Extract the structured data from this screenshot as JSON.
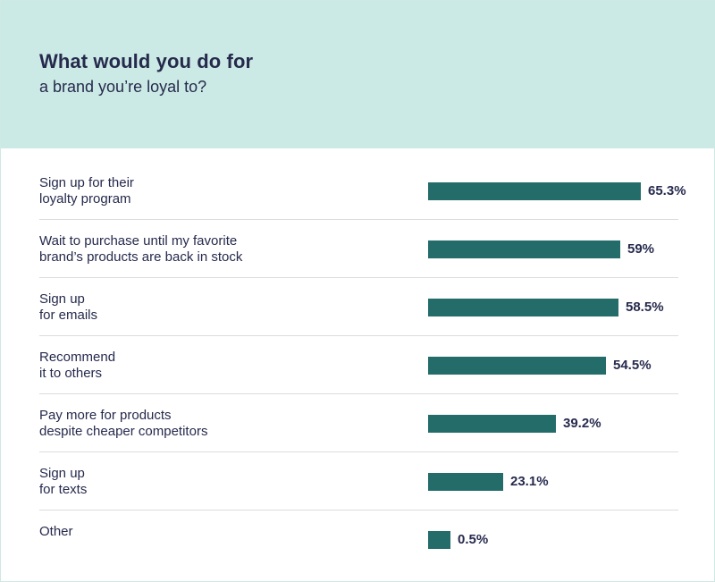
{
  "header": {
    "title": "What would you do for",
    "subtitle": "a brand you’re loyal to?"
  },
  "colors": {
    "header_bg": "#cceae5",
    "bar": "#236c6a",
    "text": "#262a4d"
  },
  "chart_data": {
    "type": "bar",
    "orientation": "horizontal",
    "categories": [
      [
        "Sign up for their",
        "loyalty program"
      ],
      [
        "Wait to purchase until my favorite",
        "brand’s products are back in stock"
      ],
      [
        "Sign up",
        "for emails"
      ],
      [
        "Recommend",
        "it to others"
      ],
      [
        "Pay more for products",
        "despite cheaper competitors"
      ],
      [
        "Sign up",
        "for texts"
      ],
      [
        "Other"
      ]
    ],
    "values": [
      65.3,
      59,
      58.5,
      54.5,
      39.2,
      23.1,
      0.5
    ],
    "value_labels": [
      "65.3%",
      "59%",
      "58.5%",
      "54.5%",
      "39.2%",
      "23.1%",
      "0.5%"
    ],
    "title": "What would you do for a brand you’re loyal to?",
    "xlabel": "",
    "ylabel": "",
    "xlim": [
      0,
      65.3
    ],
    "grid": false,
    "legend": "none"
  }
}
